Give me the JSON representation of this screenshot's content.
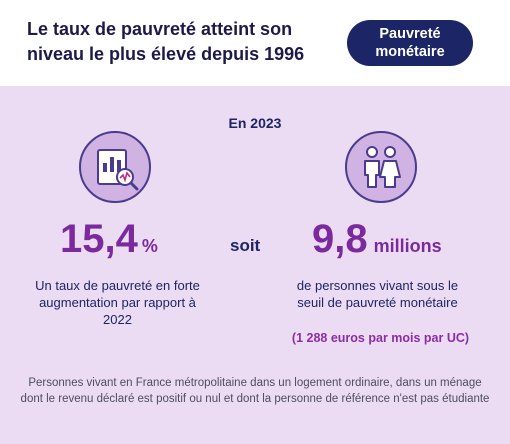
{
  "header": {
    "title": "Le taux de pauvreté atteint son niveau le plus élevé depuis 1996",
    "tag": "Pauvreté monétaire"
  },
  "panel": {
    "year": "En 2023",
    "left": {
      "icon": "chart-report-icon",
      "value": "15,4",
      "unit": "%",
      "description": "Un taux de pauvreté en forte augmentation par rapport à 2022"
    },
    "connector": "soit",
    "right": {
      "icon": "people-icon",
      "value": "9,8",
      "unit": "millions",
      "description": "de personnes vivant sous le seuil de pauvreté monétaire",
      "detail": "(1 288 euros par mois par UC)"
    },
    "note": "Personnes vivant en France métropolitaine dans un logement ordinaire, dans un ménage dont le revenu déclaré est positif ou nul et dont la personne de référence n'est pas étudiante"
  },
  "colors": {
    "title": "#1c1a4a",
    "tag_bg": "#1c2565",
    "panel_bg": "#ecdcf3",
    "accent": "#7b2a9e",
    "icon_bg": "#d0b2e3"
  }
}
